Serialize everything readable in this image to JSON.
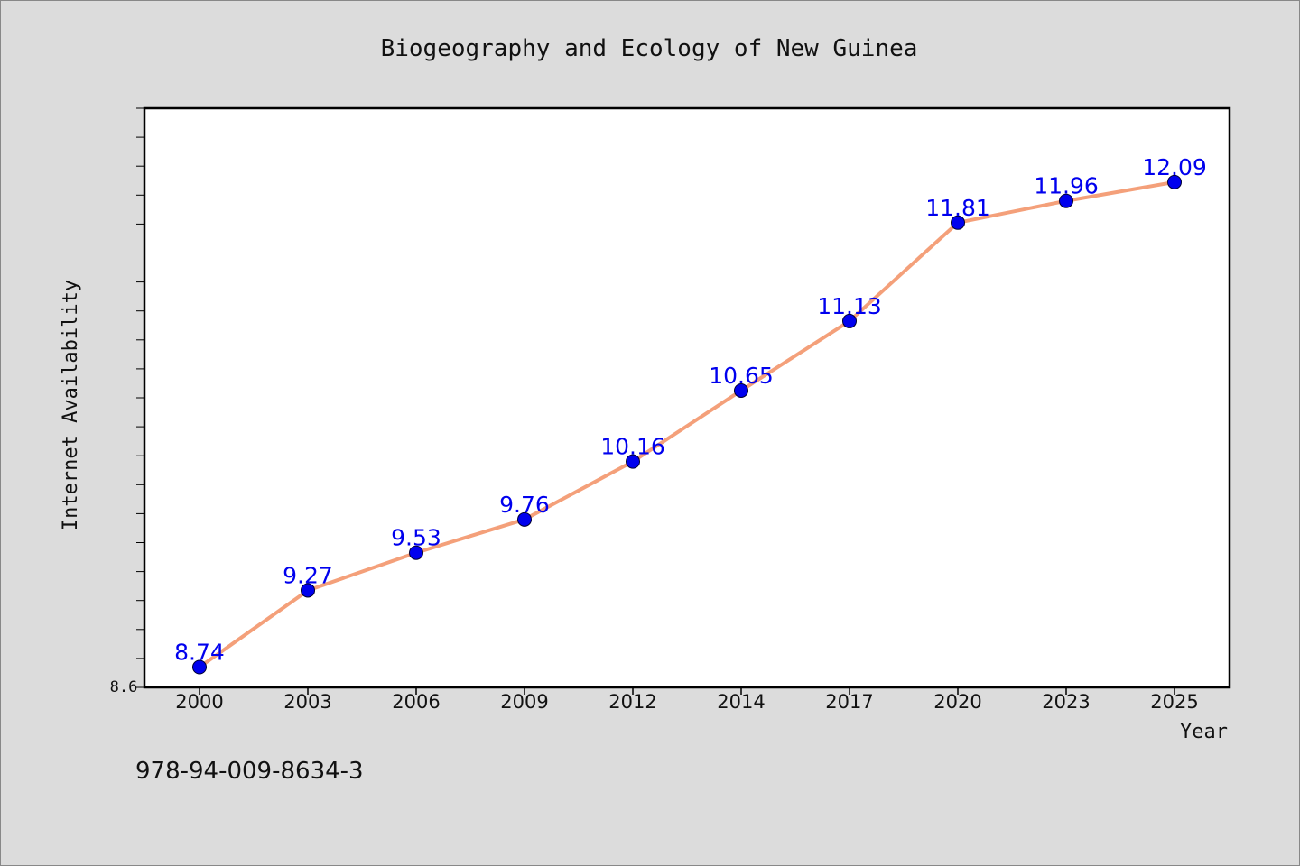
{
  "chart_data": {
    "type": "line",
    "title": "Biogeography and Ecology of New Guinea",
    "xlabel": "Year",
    "ylabel": "Internet Availability",
    "categories": [
      "2000",
      "2003",
      "2006",
      "2009",
      "2012",
      "2014",
      "2017",
      "2020",
      "2023",
      "2025"
    ],
    "series": [
      {
        "values": [
          8.74,
          9.27,
          9.53,
          9.76,
          10.16,
          10.65,
          11.13,
          11.81,
          11.96,
          12.09
        ],
        "data_labels": [
          "8.74",
          "9.27",
          "9.53",
          "9.76",
          "10.16",
          "10.65",
          "11.13",
          "11.81",
          "11.96",
          "12.09"
        ],
        "line_color": "#f4a07a",
        "marker_color": "#0000ee"
      }
    ],
    "ylim": [
      8.6,
      12.6
    ],
    "y_tick_label": "8.6",
    "grid": false,
    "legend": "none"
  },
  "footer": {
    "isbn": "978-94-009-8634-3"
  },
  "colors": {
    "background": "#dcdcdc",
    "plot_background": "#ffffff",
    "axis": "#000000",
    "data_label": "#0000ee"
  }
}
